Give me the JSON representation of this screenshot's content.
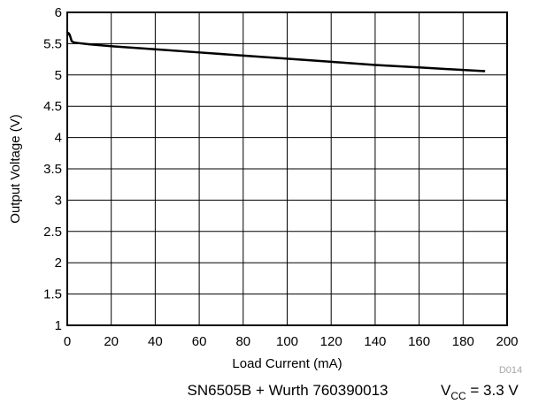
{
  "chart_data": {
    "type": "line",
    "title": "",
    "xlabel": "Load Current (mA)",
    "ylabel": "Output Voltage (V)",
    "xlim": [
      0,
      200
    ],
    "ylim": [
      1,
      6
    ],
    "grid": true,
    "x_ticks": [
      "0",
      "20",
      "40",
      "60",
      "80",
      "100",
      "120",
      "140",
      "160",
      "180",
      "200"
    ],
    "y_ticks": [
      "1",
      "1.5",
      "2",
      "2.5",
      "3",
      "3.5",
      "4",
      "4.5",
      "5",
      "5.5",
      "6"
    ],
    "series": [
      {
        "color": "#000000",
        "x": [
          0,
          0.5,
          1,
          1.5,
          2,
          3,
          5,
          10,
          20,
          40,
          60,
          80,
          100,
          120,
          140,
          160,
          180,
          190
        ],
        "y": [
          5.64,
          5.67,
          5.65,
          5.6,
          5.54,
          5.52,
          5.51,
          5.49,
          5.46,
          5.41,
          5.36,
          5.31,
          5.26,
          5.21,
          5.16,
          5.12,
          5.08,
          5.06
        ]
      }
    ]
  },
  "figure_code": "D014",
  "caption": {
    "device": "SN6505B + Wurth 760390013",
    "vcc_prefix": "V",
    "vcc_subscript": "CC",
    "vcc_value": " = 3.3 V"
  }
}
